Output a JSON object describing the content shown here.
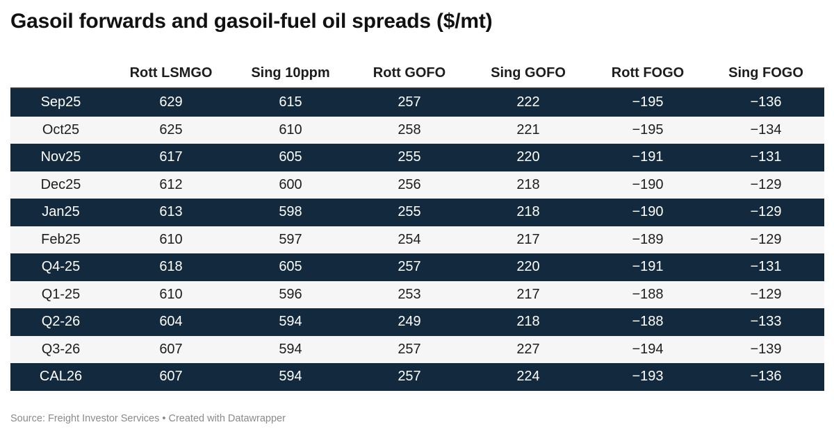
{
  "title": "Gasoil forwards and gasoil-fuel oil spreads ($/mt)",
  "footer": "Source: Freight Investor Services • Created with Datawrapper",
  "colors": {
    "dark_row": "#13293d",
    "light_row": "#f6f6f6"
  },
  "chart_data": {
    "type": "table",
    "title": "Gasoil forwards and gasoil-fuel oil spreads ($/mt)",
    "columns": [
      "",
      "Rott LSMGO",
      "Sing 10ppm",
      "Rott GOFO",
      "Sing GOFO",
      "Rott FOGO",
      "Sing FOGO"
    ],
    "rows": [
      [
        "Sep25",
        "629",
        "615",
        "257",
        "222",
        "−195",
        "−136"
      ],
      [
        "Oct25",
        "625",
        "610",
        "258",
        "221",
        "−195",
        "−134"
      ],
      [
        "Nov25",
        "617",
        "605",
        "255",
        "220",
        "−191",
        "−131"
      ],
      [
        "Dec25",
        "612",
        "600",
        "256",
        "218",
        "−190",
        "−129"
      ],
      [
        "Jan25",
        "613",
        "598",
        "255",
        "218",
        "−190",
        "−129"
      ],
      [
        "Feb25",
        "610",
        "597",
        "254",
        "217",
        "−189",
        "−129"
      ],
      [
        "Q4-25",
        "618",
        "605",
        "257",
        "220",
        "−191",
        "−131"
      ],
      [
        "Q1-25",
        "610",
        "596",
        "253",
        "217",
        "−188",
        "−129"
      ],
      [
        "Q2-26",
        "604",
        "594",
        "249",
        "218",
        "−188",
        "−133"
      ],
      [
        "Q3-26",
        "607",
        "594",
        "257",
        "227",
        "−194",
        "−139"
      ],
      [
        "CAL26",
        "607",
        "594",
        "257",
        "224",
        "−193",
        "−136"
      ]
    ]
  }
}
